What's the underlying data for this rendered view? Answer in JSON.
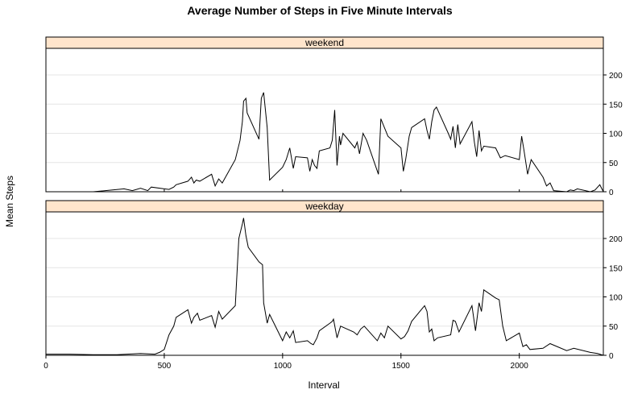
{
  "chart_data": {
    "type": "line",
    "title": "Average Number of Steps in Five Minute Intervals",
    "xlabel": "Interval",
    "ylabel": "Mean Steps",
    "xlim": [
      0,
      2355
    ],
    "ylim": [
      0,
      240
    ],
    "x_ticks": [
      0,
      500,
      1000,
      1500,
      2000
    ],
    "y_ticks": [
      0,
      50,
      100,
      150,
      200
    ],
    "grid": "horizontal",
    "strip_color": "#ffe5cc",
    "line_color": "#000000",
    "panels": [
      {
        "name": "weekend",
        "x": [
          0,
          55,
          100,
          200,
          330,
          365,
          400,
          430,
          445,
          500,
          520,
          540,
          550,
          600,
          615,
          625,
          635,
          650,
          700,
          715,
          730,
          745,
          800,
          820,
          830,
          835,
          845,
          850,
          900,
          910,
          920,
          935,
          945,
          1000,
          1015,
          1030,
          1045,
          1055,
          1105,
          1115,
          1125,
          1135,
          1145,
          1155,
          1200,
          1210,
          1220,
          1230,
          1240,
          1245,
          1255,
          1305,
          1315,
          1325,
          1340,
          1355,
          1405,
          1415,
          1430,
          1445,
          1500,
          1510,
          1520,
          1535,
          1545,
          1600,
          1610,
          1620,
          1630,
          1640,
          1650,
          1700,
          1710,
          1720,
          1730,
          1740,
          1750,
          1800,
          1810,
          1820,
          1830,
          1840,
          1850,
          1900,
          1920,
          1940,
          2000,
          2010,
          2020,
          2035,
          2050,
          2100,
          2115,
          2130,
          2145,
          2200,
          2215,
          2230,
          2245,
          2300,
          2320,
          2340,
          2355
        ],
        "y": [
          0,
          0,
          0,
          0,
          5,
          2,
          6,
          2,
          8,
          5,
          4,
          8,
          12,
          18,
          25,
          15,
          20,
          18,
          30,
          10,
          22,
          15,
          55,
          88,
          120,
          155,
          160,
          135,
          90,
          160,
          170,
          110,
          20,
          42,
          55,
          75,
          40,
          60,
          58,
          35,
          55,
          45,
          40,
          70,
          75,
          88,
          140,
          45,
          95,
          80,
          100,
          75,
          85,
          65,
          100,
          88,
          30,
          125,
          110,
          95,
          75,
          35,
          55,
          95,
          110,
          125,
          105,
          90,
          120,
          140,
          145,
          100,
          90,
          112,
          75,
          115,
          82,
          120,
          85,
          60,
          105,
          70,
          78,
          75,
          58,
          62,
          55,
          95,
          70,
          30,
          55,
          25,
          10,
          15,
          2,
          0,
          3,
          2,
          5,
          0,
          3,
          12,
          0
        ]
      },
      {
        "name": "weekday",
        "x": [
          0,
          100,
          200,
          300,
          400,
          460,
          480,
          500,
          520,
          540,
          550,
          600,
          615,
          625,
          640,
          650,
          700,
          715,
          730,
          745,
          800,
          815,
          830,
          835,
          845,
          855,
          900,
          915,
          920,
          935,
          945,
          1000,
          1015,
          1030,
          1045,
          1055,
          1105,
          1120,
          1130,
          1145,
          1155,
          1200,
          1210,
          1215,
          1230,
          1245,
          1300,
          1315,
          1330,
          1345,
          1400,
          1415,
          1430,
          1445,
          1500,
          1515,
          1530,
          1545,
          1600,
          1610,
          1620,
          1630,
          1640,
          1655,
          1710,
          1720,
          1730,
          1745,
          1800,
          1815,
          1830,
          1840,
          1850,
          1900,
          1915,
          1930,
          1945,
          2000,
          2015,
          2030,
          2045,
          2100,
          2130,
          2200,
          2230,
          2300,
          2330,
          2355
        ],
        "y": [
          2,
          2,
          1,
          1,
          3,
          2,
          5,
          10,
          35,
          50,
          65,
          78,
          55,
          65,
          72,
          60,
          68,
          48,
          75,
          62,
          85,
          200,
          225,
          235,
          205,
          185,
          160,
          155,
          90,
          55,
          70,
          25,
          40,
          30,
          42,
          22,
          25,
          20,
          18,
          30,
          42,
          55,
          58,
          62,
          30,
          50,
          40,
          35,
          45,
          50,
          25,
          38,
          30,
          50,
          28,
          32,
          42,
          58,
          85,
          75,
          40,
          45,
          25,
          30,
          35,
          60,
          58,
          40,
          85,
          42,
          90,
          75,
          112,
          98,
          95,
          50,
          25,
          38,
          15,
          18,
          10,
          12,
          20,
          8,
          12,
          5,
          3,
          0
        ]
      }
    ]
  }
}
